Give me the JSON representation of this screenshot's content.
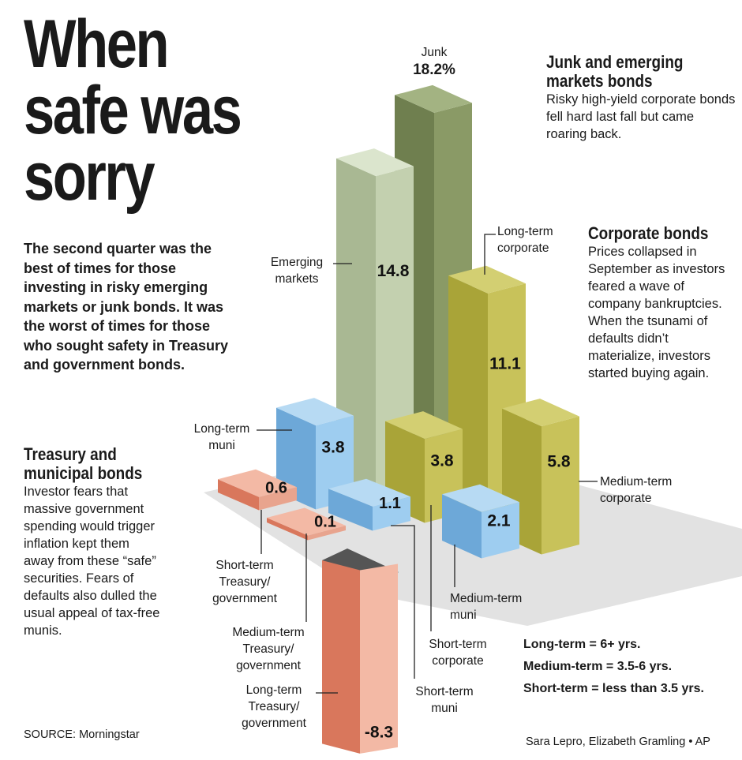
{
  "title_lines": [
    "When",
    "safe was",
    "sorry"
  ],
  "intro": "The second quarter was the best of times for those investing in risky emerging markets or junk bonds. It was the worst of times for those who sought safety in Treasury and government bonds.",
  "sections": {
    "junk": {
      "heading_lines": [
        "Junk and emerging",
        "markets bonds"
      ],
      "body": "Risky high-yield corporate bonds fell hard last fall but came roaring back."
    },
    "corporate": {
      "heading": "Corporate bonds",
      "body": "Prices collapsed in September as investors feared a wave of company bankruptcies. When the tsunami of defaults didn’t materialize, investors started buying again."
    },
    "treasury": {
      "heading_lines": [
        "Treasury and",
        "municipal bonds"
      ],
      "body": "Investor fears that massive government spending would trigger inflation kept them away from these “safe” securities. Fears of defaults also dulled the usual appeal of tax-free munis."
    }
  },
  "definitions": [
    "Long-term = 6+ yrs.",
    "Medium-term = 3.5-6 yrs.",
    "Short-term = less than 3.5 yrs."
  ],
  "source": "SOURCE: Morningstar",
  "credit": "Sara Lepro, Elizabeth Gramling • AP",
  "colors": {
    "junk": [
      "#a3b382",
      "#6f7f4f",
      "#8a9a66"
    ],
    "emerging": [
      "#dbe5cd",
      "#a9b893",
      "#c3d0af"
    ],
    "corporate": [
      "#d3cf72",
      "#a9a438",
      "#c8c25a"
    ],
    "muni": [
      "#b7daf3",
      "#6da8d8",
      "#9ecdf0"
    ],
    "treasury": [
      "#f3b9a5",
      "#d9775c",
      "#e8a48e"
    ],
    "floor": "#e2e2e2",
    "empty": "#555555"
  },
  "chart_data": {
    "type": "bar",
    "title": "When safe was sorry",
    "unit": "percent return, second quarter",
    "series": [
      {
        "name": "Junk",
        "label_lines": [
          "Junk"
        ],
        "value": 18.2,
        "value_label": "18.2%",
        "group": "junk"
      },
      {
        "name": "Emerging markets",
        "label_lines": [
          "Emerging",
          "markets"
        ],
        "value": 14.8,
        "value_label": "14.8",
        "group": "emerging"
      },
      {
        "name": "Long-term corporate",
        "label_lines": [
          "Long-term",
          "corporate"
        ],
        "value": 11.1,
        "value_label": "11.1",
        "group": "corporate"
      },
      {
        "name": "Medium-term corporate",
        "label_lines": [
          "Medium-term",
          "corporate"
        ],
        "value": 5.8,
        "value_label": "5.8",
        "group": "corporate"
      },
      {
        "name": "Short-term corporate",
        "label_lines": [
          "Short-term",
          "corporate"
        ],
        "value": 3.8,
        "value_label": "3.8",
        "group": "corporate"
      },
      {
        "name": "Long-term muni",
        "label_lines": [
          "Long-term",
          "muni"
        ],
        "value": 3.8,
        "value_label": "3.8",
        "group": "muni"
      },
      {
        "name": "Medium-term muni",
        "label_lines": [
          "Medium-term",
          "muni"
        ],
        "value": 2.1,
        "value_label": "2.1",
        "group": "muni"
      },
      {
        "name": "Short-term muni",
        "label_lines": [
          "Short-term",
          "muni"
        ],
        "value": 1.1,
        "value_label": "1.1",
        "group": "muni"
      },
      {
        "name": "Short-term Treasury/government",
        "label_lines": [
          "Short-term",
          "Treasury/",
          "government"
        ],
        "value": 0.6,
        "value_label": "0.6",
        "group": "treasury"
      },
      {
        "name": "Medium-term Treasury/government",
        "label_lines": [
          "Medium-term",
          "Treasury/",
          "government"
        ],
        "value": 0.1,
        "value_label": "0.1",
        "group": "treasury"
      },
      {
        "name": "Long-term Treasury/government",
        "label_lines": [
          "Long-term",
          "Treasury/",
          "government"
        ],
        "value": -8.3,
        "value_label": "-8.3",
        "group": "treasury"
      }
    ]
  }
}
